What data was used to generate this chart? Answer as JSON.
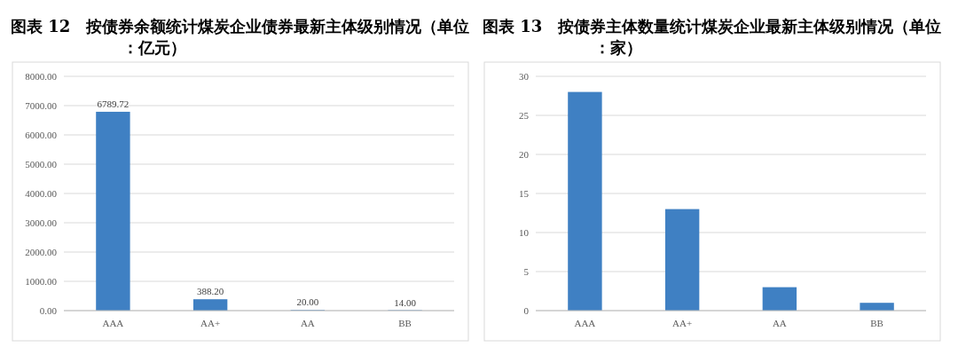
{
  "chart_data": [
    {
      "type": "bar",
      "title": "图表 12　按债券余额统计煤炭企业债券最新主体级别情况（单位：亿元）",
      "categories": [
        "AAA",
        "AA+",
        "AA",
        "BB"
      ],
      "values": [
        6789.72,
        388.2,
        20,
        14
      ],
      "color": "#3f80c3",
      "value_labels": [
        "6789.72",
        "388.20",
        "20.00",
        "14.00"
      ],
      "ylim": [
        0,
        8000
      ],
      "yticks": [
        {
          "value": 0,
          "label": "0.00"
        },
        {
          "value": 1000,
          "label": "1000.00"
        },
        {
          "value": 2000,
          "label": "2000.00"
        },
        {
          "value": 3000,
          "label": "3000.00"
        },
        {
          "value": 4000,
          "label": "4000.00"
        },
        {
          "value": 5000,
          "label": "5000.00"
        },
        {
          "value": 6000,
          "label": "6000.00"
        },
        {
          "value": 7000,
          "label": "7000.00"
        },
        {
          "value": 8000,
          "label": "8000.00"
        }
      ],
      "grid": "y"
    },
    {
      "type": "bar",
      "title": "图表 13　按债券主体数量统计煤炭企业最新主体级别情况（单位：家）",
      "categories": [
        "AAA",
        "AA+",
        "AA",
        "BB"
      ],
      "values": [
        28,
        13,
        3,
        1
      ],
      "color": "#3f80c3",
      "ylim": [
        0,
        30
      ],
      "yticks": [
        0,
        5,
        10,
        15,
        20,
        25,
        30
      ],
      "grid": "y"
    }
  ]
}
